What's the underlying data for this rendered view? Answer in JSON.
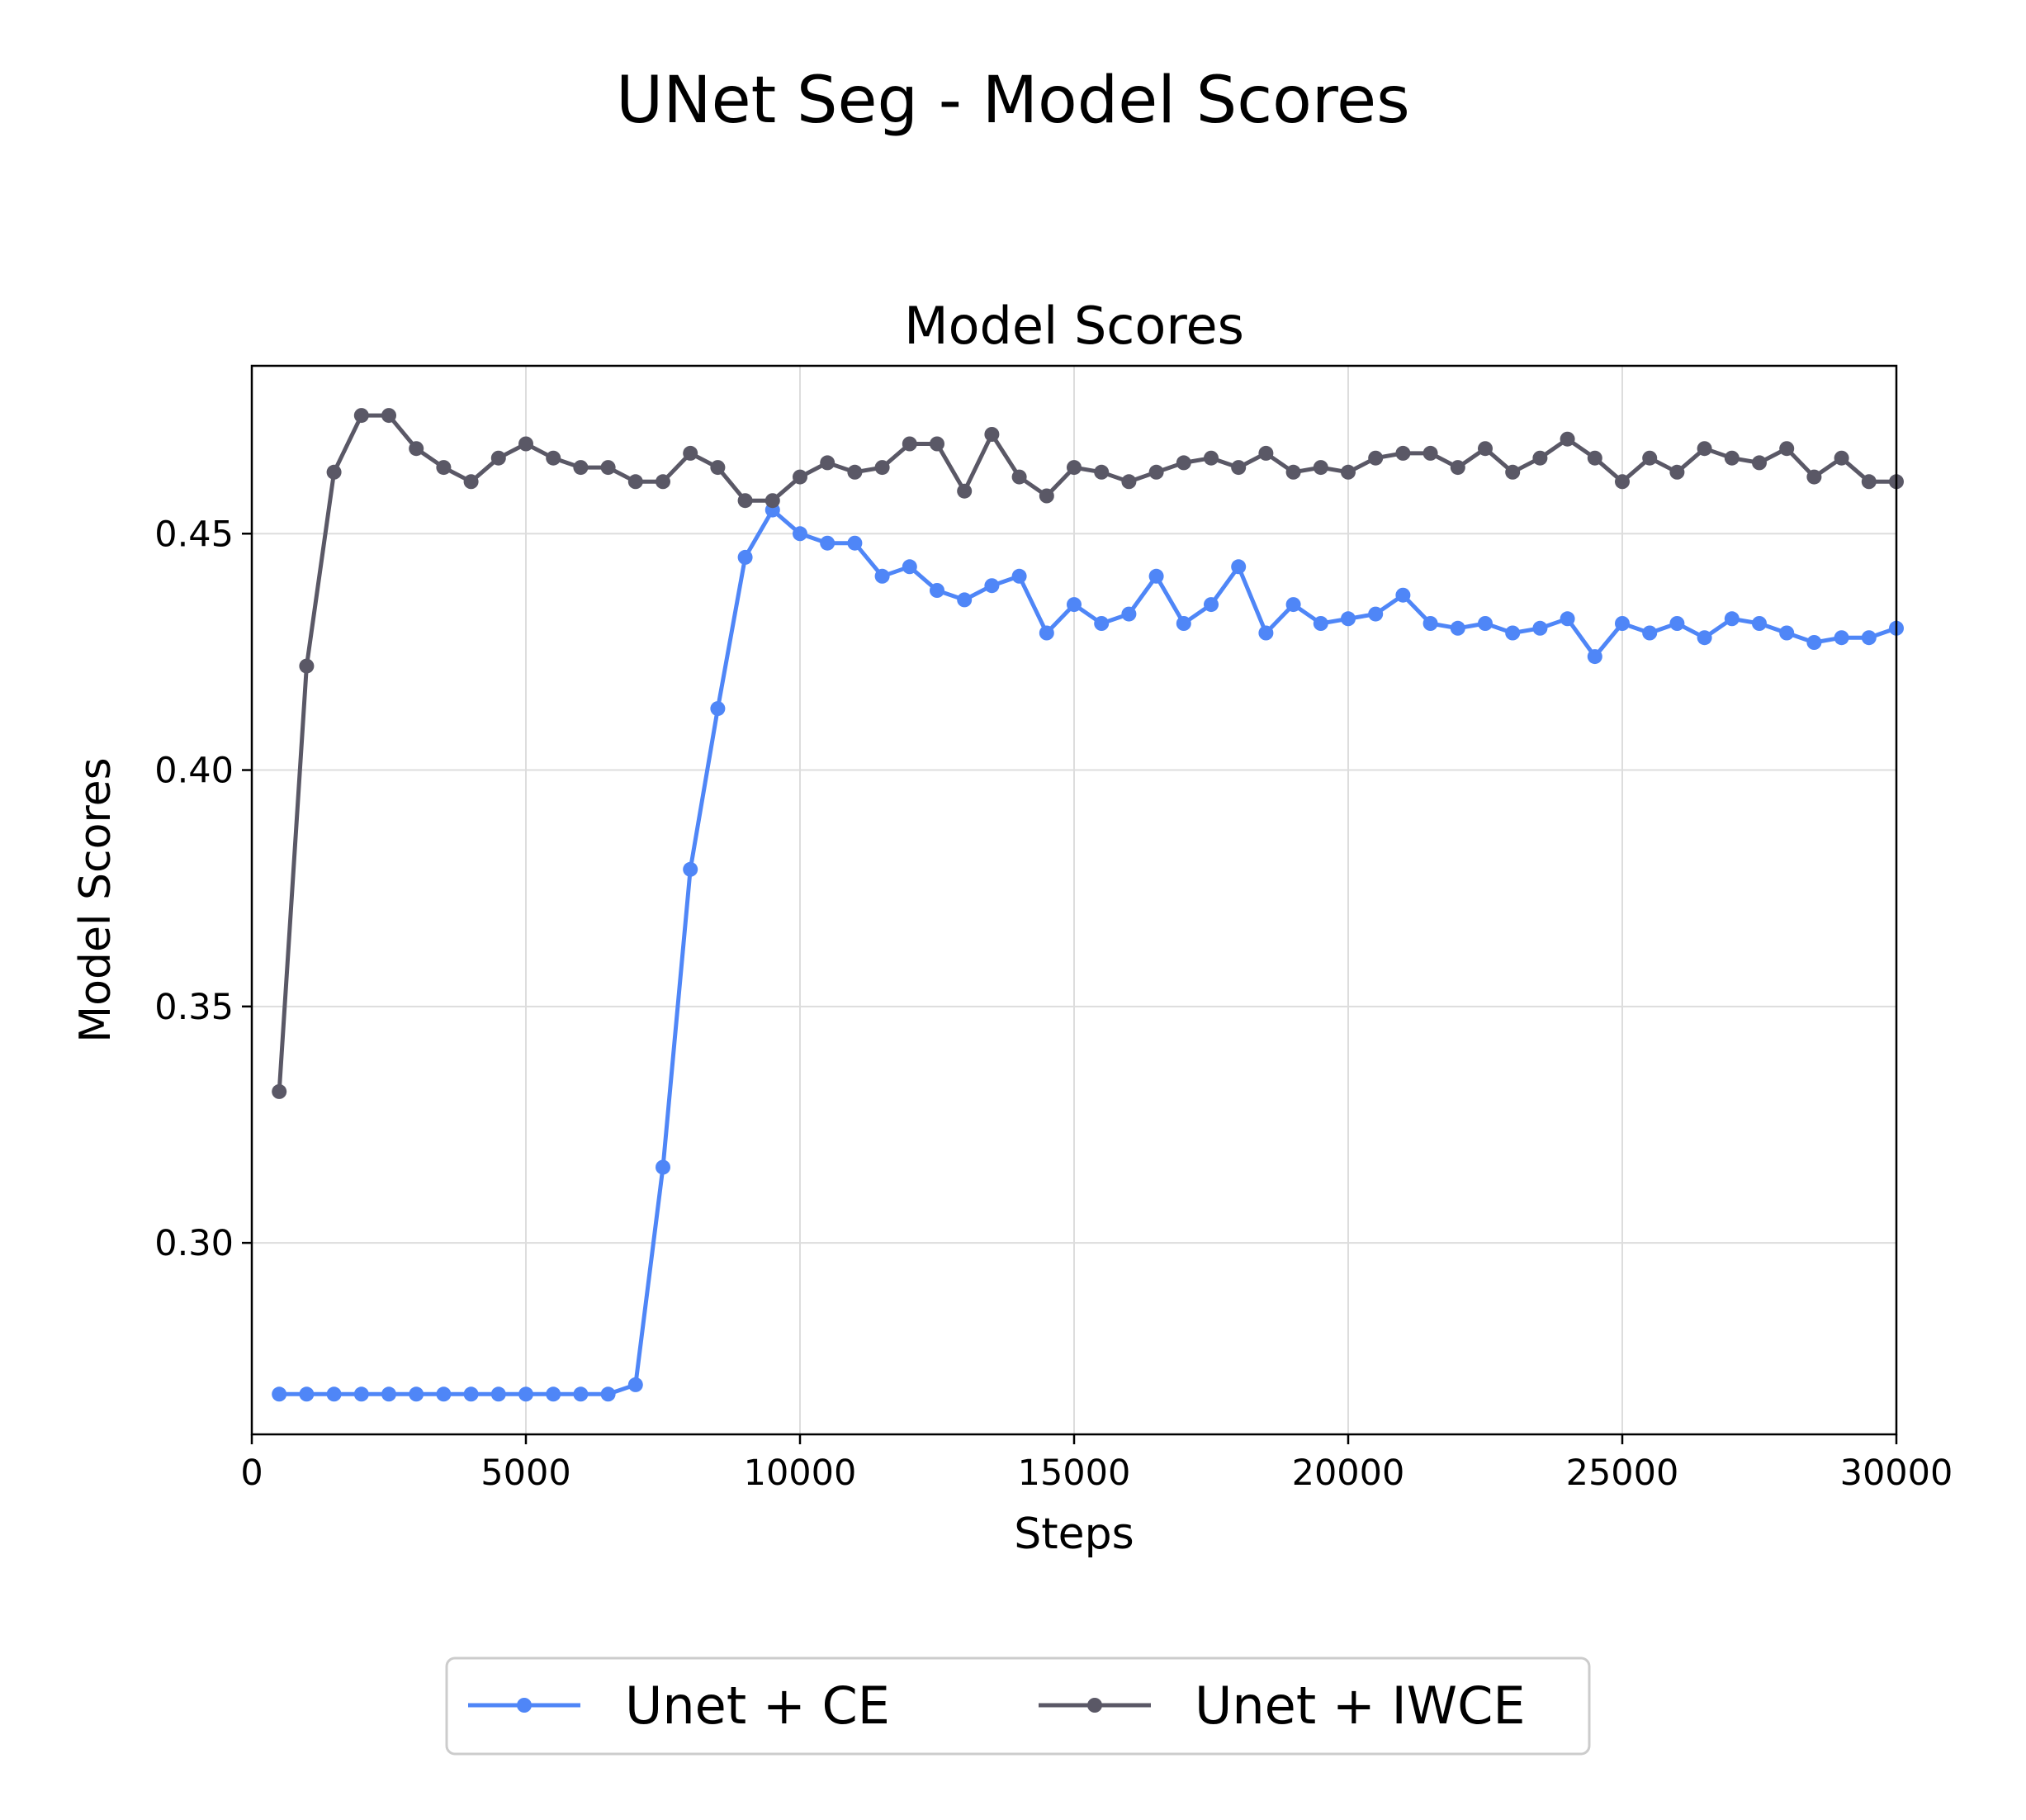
{
  "suptitle": "UNet Seg - Model Scores",
  "chart_data": {
    "type": "line",
    "title": "Model Scores",
    "xlabel": "Steps",
    "ylabel": "Model Scores",
    "xlim": [
      0,
      30000
    ],
    "ylim": [
      0.2595,
      0.4855
    ],
    "xticks": [
      0,
      5000,
      10000,
      15000,
      20000,
      25000,
      30000
    ],
    "yticks": [
      0.3,
      0.35,
      0.4,
      0.45
    ],
    "ytick_labels": [
      "0.30",
      "0.35",
      "0.40",
      "0.45"
    ],
    "grid": true,
    "legend": "bottom-center, below plot",
    "x": [
      500,
      1000,
      1500,
      2000,
      2500,
      3000,
      3500,
      4000,
      4500,
      5000,
      5500,
      6000,
      6500,
      7000,
      7500,
      8000,
      8500,
      9000,
      9500,
      10000,
      10500,
      11000,
      11500,
      12000,
      12500,
      13000,
      13500,
      14000,
      14500,
      15000,
      15500,
      16000,
      16500,
      17000,
      17500,
      18000,
      18500,
      19000,
      19500,
      20000,
      20500,
      21000,
      21500,
      22000,
      22500,
      23000,
      23500,
      24000,
      24500,
      25000,
      25500,
      26000,
      26500,
      27000,
      27500,
      28000,
      28500,
      29000,
      29500,
      30000
    ],
    "series": [
      {
        "name": "Unet + CE",
        "color": "#4f86f7",
        "values": [
          0.268,
          0.268,
          0.268,
          0.268,
          0.268,
          0.268,
          0.268,
          0.268,
          0.268,
          0.268,
          0.268,
          0.268,
          0.268,
          0.27,
          0.316,
          0.379,
          0.413,
          0.445,
          0.455,
          0.45,
          0.448,
          0.448,
          0.441,
          0.443,
          0.438,
          0.436,
          0.439,
          0.441,
          0.429,
          0.435,
          0.431,
          0.433,
          0.441,
          0.431,
          0.435,
          0.443,
          0.429,
          0.435,
          0.431,
          0.432,
          0.433,
          0.437,
          0.431,
          0.43,
          0.431,
          0.429,
          0.43,
          0.432,
          0.424,
          0.431,
          0.429,
          0.431,
          0.428,
          0.432,
          0.431,
          0.429,
          0.427,
          0.428,
          0.428,
          0.43
        ]
      },
      {
        "name": "Unet + IWCE",
        "color": "#5a5866",
        "values": [
          0.332,
          0.422,
          0.463,
          0.475,
          0.475,
          0.468,
          0.464,
          0.461,
          0.466,
          0.469,
          0.466,
          0.464,
          0.464,
          0.461,
          0.461,
          0.467,
          0.464,
          0.457,
          0.457,
          0.462,
          0.465,
          0.463,
          0.464,
          0.469,
          0.469,
          0.459,
          0.471,
          0.462,
          0.458,
          0.464,
          0.463,
          0.461,
          0.463,
          0.465,
          0.466,
          0.464,
          0.467,
          0.463,
          0.464,
          0.463,
          0.466,
          0.467,
          0.467,
          0.464,
          0.468,
          0.463,
          0.466,
          0.47,
          0.466,
          0.461,
          0.466,
          0.463,
          0.468,
          0.466,
          0.465,
          0.468,
          0.462,
          0.466,
          0.461,
          0.461
        ]
      }
    ]
  }
}
